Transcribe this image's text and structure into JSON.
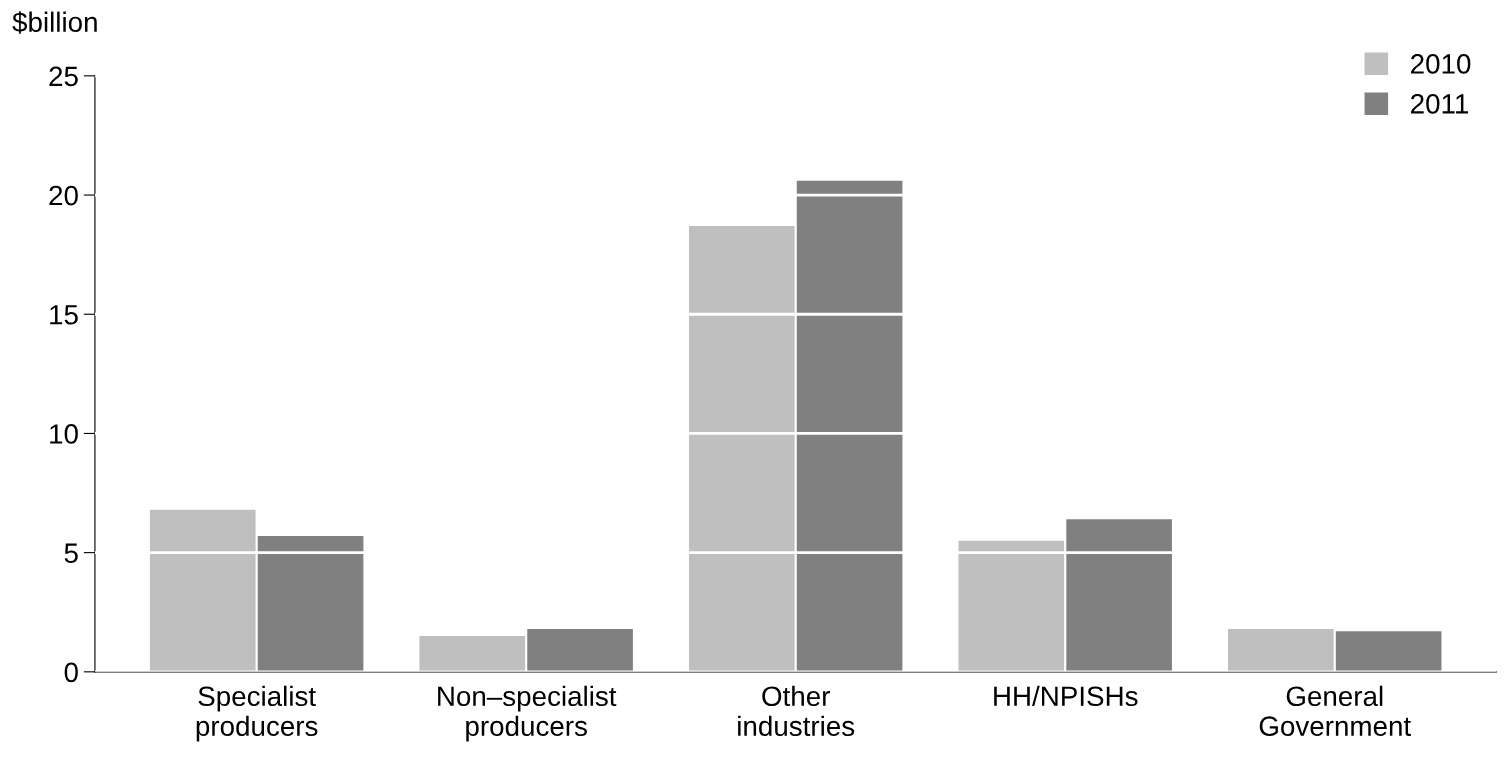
{
  "chart_data": {
    "type": "bar",
    "ylabel": "$billion",
    "categories": [
      "Specialist\nproducers",
      "Non–specialist\nproducers",
      "Other\nindustries",
      "HH/NPISHs",
      "General\nGovernment"
    ],
    "series": [
      {
        "name": "2010",
        "color": "#bfbfbf",
        "values": [
          6.8,
          1.5,
          18.7,
          5.5,
          1.8
        ]
      },
      {
        "name": "2011",
        "color": "#808080",
        "values": [
          5.7,
          1.8,
          20.6,
          6.4,
          1.7
        ]
      }
    ],
    "ylim": [
      0,
      25
    ],
    "yticks": [
      0,
      5,
      10,
      15,
      20,
      25
    ],
    "grid": "y",
    "legend": "top right"
  }
}
